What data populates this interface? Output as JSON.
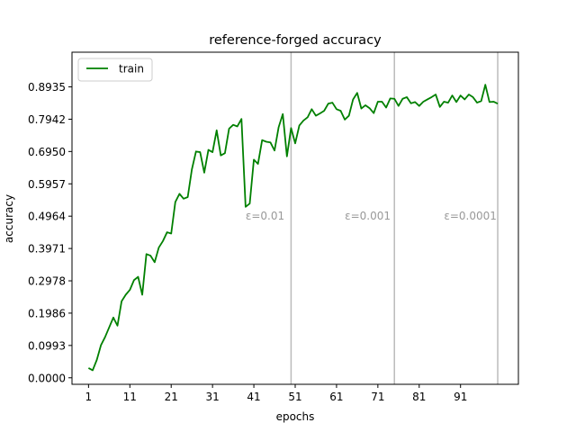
{
  "chart_data": {
    "type": "line",
    "title": "reference-forged accuracy",
    "xlabel": "epochs",
    "ylabel": "accuracy",
    "xlim": [
      -3,
      105
    ],
    "ylim": [
      -0.02,
      1.0
    ],
    "xticks": [
      1,
      11,
      21,
      31,
      41,
      51,
      61,
      71,
      81,
      91
    ],
    "yticks": [
      0.0,
      0.0993,
      0.1986,
      0.2978,
      0.3971,
      0.4964,
      0.5957,
      0.695,
      0.7942,
      0.8935
    ],
    "ytick_labels": [
      "0.0000",
      "0.0993",
      "0.1986",
      "0.2978",
      "0.3971",
      "0.4964",
      "0.5957",
      "0.6950",
      "0.7942",
      "0.8935"
    ],
    "grid": false,
    "legend_position": "top-left",
    "series": [
      {
        "name": "train",
        "color": "#008000",
        "x": [
          1,
          2,
          3,
          4,
          5,
          6,
          7,
          8,
          9,
          10,
          11,
          12,
          13,
          14,
          15,
          16,
          17,
          18,
          19,
          20,
          21,
          22,
          23,
          24,
          25,
          26,
          27,
          28,
          29,
          30,
          31,
          32,
          33,
          34,
          35,
          36,
          37,
          38,
          39,
          40,
          41,
          42,
          43,
          44,
          45,
          46,
          47,
          48,
          49,
          50,
          51,
          52,
          53,
          54,
          55,
          56,
          57,
          58,
          59,
          60,
          61,
          62,
          63,
          64,
          65,
          66,
          67,
          68,
          69,
          70,
          71,
          72,
          73,
          74,
          75,
          76,
          77,
          78,
          79,
          80,
          81,
          82,
          83,
          84,
          85,
          86,
          87,
          88,
          89,
          90,
          91,
          92,
          93,
          94,
          95,
          96,
          97,
          98,
          99,
          100
        ],
        "values": [
          0.03,
          0.023,
          0.055,
          0.1,
          0.125,
          0.155,
          0.185,
          0.16,
          0.235,
          0.255,
          0.27,
          0.3,
          0.31,
          0.255,
          0.38,
          0.375,
          0.355,
          0.4,
          0.42,
          0.447,
          0.443,
          0.54,
          0.565,
          0.55,
          0.555,
          0.64,
          0.695,
          0.693,
          0.63,
          0.7,
          0.693,
          0.76,
          0.683,
          0.69,
          0.765,
          0.777,
          0.772,
          0.795,
          0.525,
          0.535,
          0.67,
          0.657,
          0.73,
          0.725,
          0.723,
          0.698,
          0.77,
          0.81,
          0.68,
          0.767,
          0.72,
          0.775,
          0.79,
          0.8,
          0.825,
          0.805,
          0.812,
          0.82,
          0.842,
          0.845,
          0.825,
          0.82,
          0.793,
          0.805,
          0.855,
          0.875,
          0.827,
          0.837,
          0.828,
          0.813,
          0.848,
          0.848,
          0.83,
          0.858,
          0.857,
          0.835,
          0.857,
          0.862,
          0.843,
          0.847,
          0.835,
          0.848,
          0.855,
          0.862,
          0.87,
          0.832,
          0.848,
          0.845,
          0.867,
          0.847,
          0.867,
          0.855,
          0.87,
          0.862,
          0.845,
          0.85,
          0.9,
          0.847,
          0.848,
          0.842
        ]
      }
    ],
    "vlines": [
      {
        "x": 50,
        "color": "#bbbbbb"
      },
      {
        "x": 75,
        "color": "#bbbbbb"
      },
      {
        "x": 100,
        "color": "#bbbbbb"
      }
    ],
    "annotations": [
      {
        "text": "ε=0.01",
        "x": 39,
        "y": 0.4964
      },
      {
        "text": "ε=0.001",
        "x": 63,
        "y": 0.4964
      },
      {
        "text": "ε=0.0001",
        "x": 87,
        "y": 0.4964
      }
    ]
  }
}
